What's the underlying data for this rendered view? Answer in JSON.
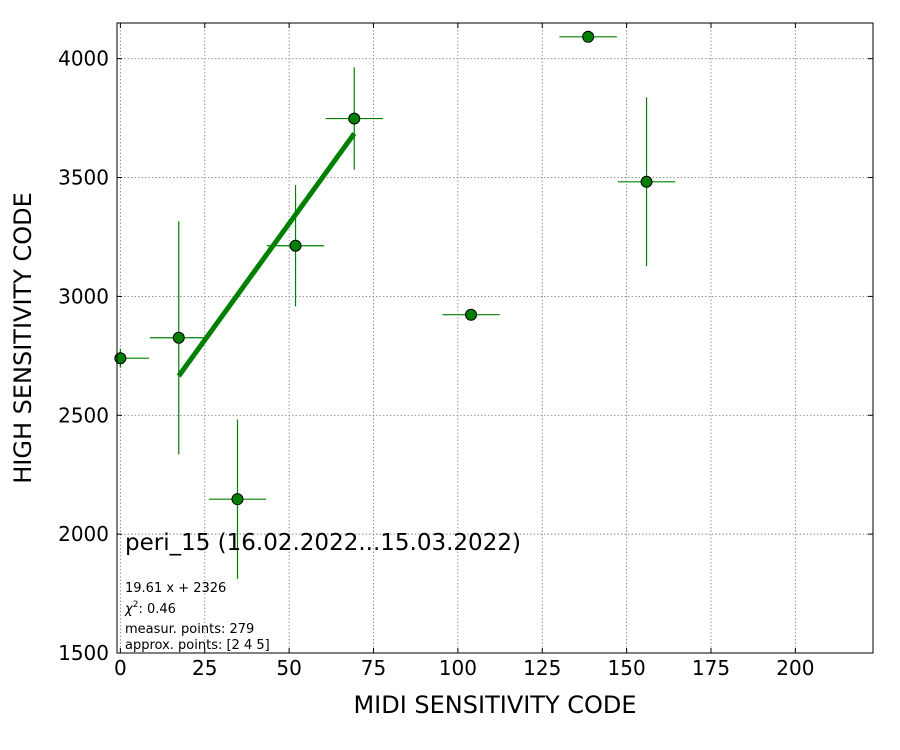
{
  "chart_data": {
    "type": "scatter",
    "xlabel": "MIDI SENSITIVITY CODE",
    "ylabel": "HIGH SENSITIVITY CODE",
    "xlim": [
      -1,
      223
    ],
    "ylim": [
      1500,
      4150
    ],
    "x_ticks": [
      0,
      25,
      50,
      75,
      100,
      125,
      150,
      175,
      200
    ],
    "y_ticks": [
      1500,
      2000,
      2500,
      3000,
      3500,
      4000
    ],
    "grid": true,
    "marker_color": "#008000",
    "fit_color": "#008000",
    "points": [
      {
        "x": 0.0,
        "y": 2740,
        "xerr": 8.5,
        "yerr": 40
      },
      {
        "x": 17.3,
        "y": 2826,
        "xerr": 8.5,
        "yerr": 490
      },
      {
        "x": 34.7,
        "y": 2147,
        "xerr": 8.5,
        "yerr": 335
      },
      {
        "x": 51.9,
        "y": 3213,
        "xerr": 8.5,
        "yerr": 255
      },
      {
        "x": 69.3,
        "y": 3748,
        "xerr": 8.5,
        "yerr": 215
      },
      {
        "x": 103.9,
        "y": 2923,
        "xerr": 8.5,
        "yerr": 0
      },
      {
        "x": 138.6,
        "y": 4092,
        "xerr": 8.5,
        "yerr": 0
      },
      {
        "x": 155.9,
        "y": 3482,
        "xerr": 8.5,
        "yerr": 355
      }
    ],
    "fit": {
      "slope": 19.61,
      "intercept": 2326,
      "x_range": [
        17.3,
        69.3
      ]
    },
    "annotations": {
      "title": "peri_15 (16.02.2022...15.03.2022)",
      "equation": "19.61 x + 2326",
      "chi2_label": "χ",
      "chi2_sup": "2",
      "chi2_value": ": 0.46",
      "measured": "measur. points: 279",
      "approx": "approx. points: [2 4 5]"
    }
  }
}
